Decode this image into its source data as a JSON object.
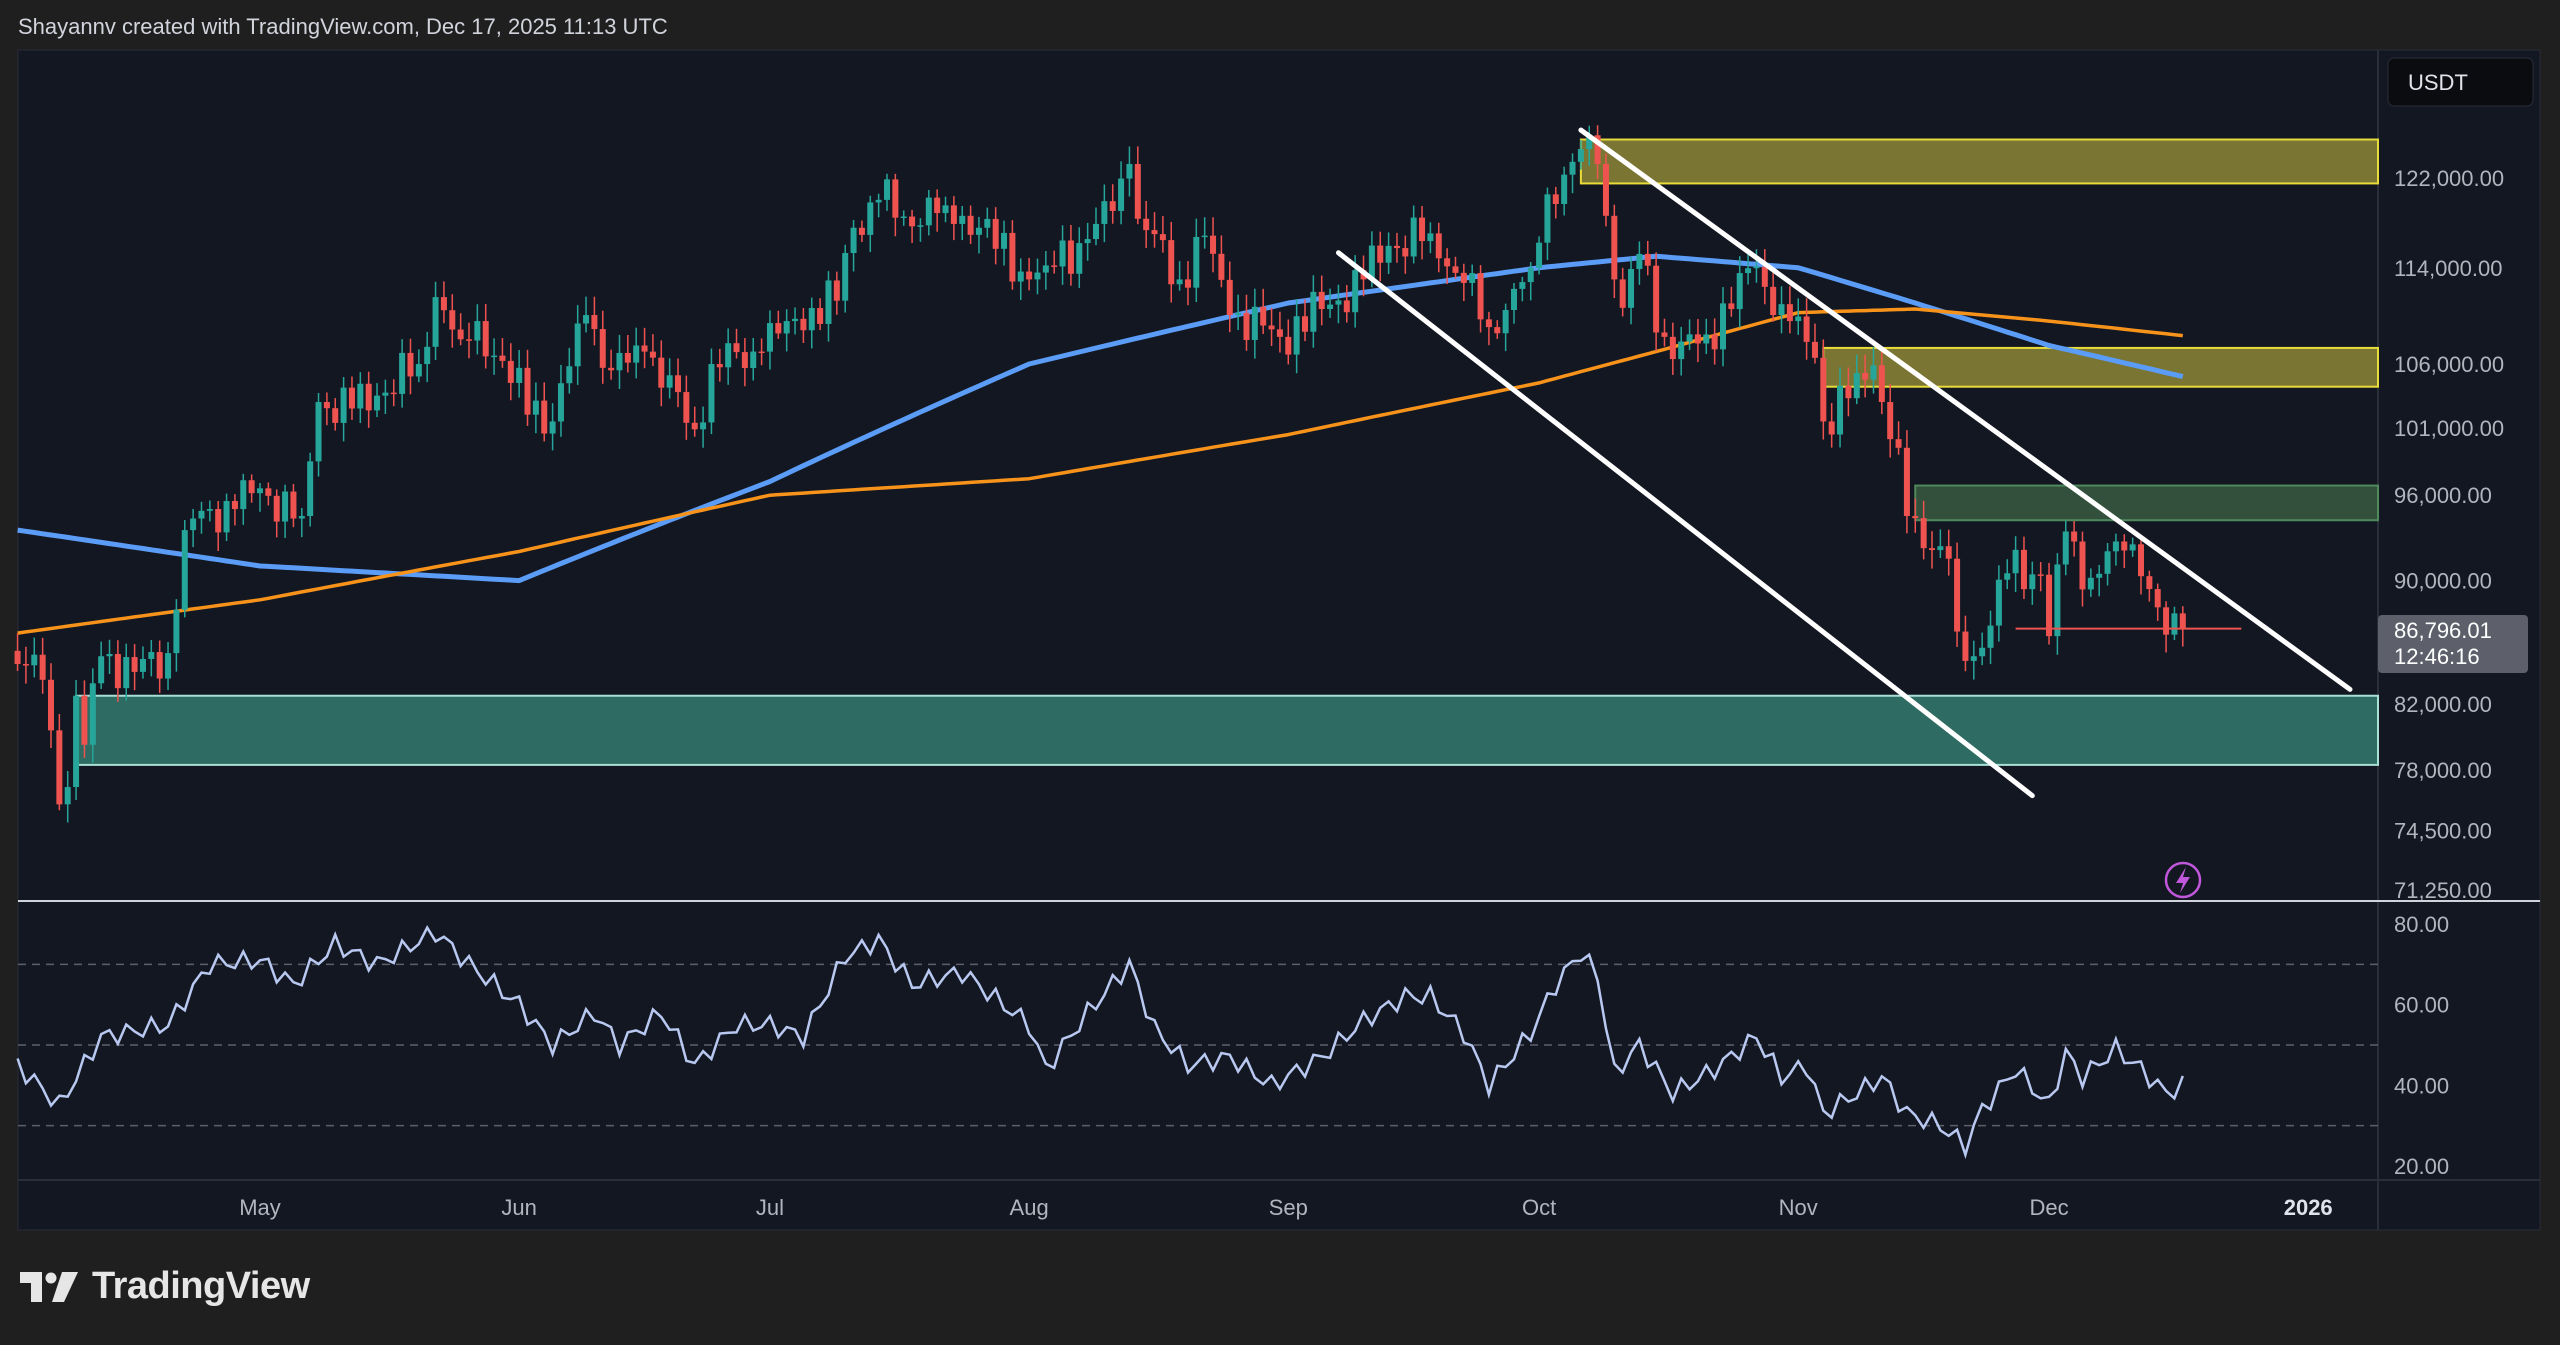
{
  "header": {
    "attribution": "Shayannv created with TradingView.com, Dec 17, 2025 11:13 UTC"
  },
  "logo": {
    "text": "TradingView"
  },
  "colors": {
    "background": "#131722",
    "up": "#26a69a",
    "down": "#ef5350",
    "ma_fast": "#5b9cf6",
    "ma_slow": "#f7931a",
    "rsi": "#b8c8f0",
    "supply_zone": "#7a7533",
    "demand_zone": "#2e6b62",
    "green_zone": "#33503c",
    "price_label": "#5d606b",
    "icon_accent": "#c158dc"
  },
  "chart_data": {
    "type": "candlestick",
    "symbol_currency": "USDT",
    "y_scale": "log",
    "ylim": [
      71250,
      128000
    ],
    "price_ticks": [
      "122,000.00",
      "114,000.00",
      "106,000.00",
      "101,000.00",
      "96,000.00",
      "90,000.00",
      "82,000.00",
      "78,000.00",
      "74,500.00",
      "71,250.00"
    ],
    "price_tick_values": [
      122000,
      114000,
      106000,
      101000,
      96000,
      90000,
      82000,
      78000,
      74500,
      71250
    ],
    "last_price": {
      "value": "86,796.01",
      "countdown": "12:46:16"
    },
    "time_ticks": [
      {
        "label": "May",
        "date": "2025-05-01"
      },
      {
        "label": "Jun",
        "date": "2025-06-01"
      },
      {
        "label": "Jul",
        "date": "2025-07-01"
      },
      {
        "label": "Aug",
        "date": "2025-08-01"
      },
      {
        "label": "Sep",
        "date": "2025-09-01"
      },
      {
        "label": "Oct",
        "date": "2025-10-01"
      },
      {
        "label": "Nov",
        "date": "2025-11-01"
      },
      {
        "label": "Dec",
        "date": "2025-12-01"
      },
      {
        "label": "2026",
        "date": "2026-01-01"
      }
    ],
    "range": {
      "start": "2025-04-02",
      "end": "2025-12-17"
    },
    "close_anchors": [
      [
        "2025-04-02",
        84500
      ],
      [
        "2025-04-05",
        83500
      ],
      [
        "2025-04-07",
        76000
      ],
      [
        "2025-04-08",
        77000
      ],
      [
        "2025-04-09",
        82500
      ],
      [
        "2025-04-10",
        79500
      ],
      [
        "2025-04-12",
        85000
      ],
      [
        "2025-04-16",
        84000
      ],
      [
        "2025-04-20",
        85200
      ],
      [
        "2025-04-22",
        93500
      ],
      [
        "2025-04-25",
        95000
      ],
      [
        "2025-04-28",
        95000
      ],
      [
        "2025-05-01",
        96500
      ],
      [
        "2025-05-06",
        94500
      ],
      [
        "2025-05-08",
        103000
      ],
      [
        "2025-05-12",
        102500
      ],
      [
        "2025-05-15",
        103500
      ],
      [
        "2025-05-20",
        106000
      ],
      [
        "2025-05-22",
        111500
      ],
      [
        "2025-05-25",
        108000
      ],
      [
        "2025-05-27",
        109500
      ],
      [
        "2025-05-31",
        104500
      ],
      [
        "2025-06-05",
        101500
      ],
      [
        "2025-06-09",
        110000
      ],
      [
        "2025-06-12",
        105500
      ],
      [
        "2025-06-16",
        107000
      ],
      [
        "2025-06-22",
        100900
      ],
      [
        "2025-06-24",
        106000
      ],
      [
        "2025-06-30",
        107000
      ],
      [
        "2025-07-03",
        109500
      ],
      [
        "2025-07-09",
        111200
      ],
      [
        "2025-07-11",
        117500
      ],
      [
        "2025-07-14",
        120000
      ],
      [
        "2025-07-17",
        118500
      ],
      [
        "2025-07-22",
        119500
      ],
      [
        "2025-07-26",
        117500
      ],
      [
        "2025-08-01",
        113000
      ],
      [
        "2025-08-03",
        114200
      ],
      [
        "2025-08-08",
        116500
      ],
      [
        "2025-08-11",
        119000
      ],
      [
        "2025-08-13",
        123300
      ],
      [
        "2025-08-14",
        118300
      ],
      [
        "2025-08-19",
        113000
      ],
      [
        "2025-08-22",
        116800
      ],
      [
        "2025-08-25",
        110000
      ],
      [
        "2025-08-31",
        108200
      ],
      [
        "2025-09-05",
        110500
      ],
      [
        "2025-09-10",
        113000
      ],
      [
        "2025-09-13",
        115900
      ],
      [
        "2025-09-18",
        117000
      ],
      [
        "2025-09-22",
        112700
      ],
      [
        "2025-09-25",
        109000
      ],
      [
        "2025-09-30",
        114000
      ],
      [
        "2025-10-02",
        120500
      ],
      [
        "2025-10-05",
        123500
      ],
      [
        "2025-10-06",
        124700
      ],
      [
        "2025-10-08",
        123300
      ],
      [
        "2025-10-10",
        113000
      ],
      [
        "2025-10-11",
        110600
      ],
      [
        "2025-10-13",
        115200
      ],
      [
        "2025-10-16",
        108200
      ],
      [
        "2025-10-17",
        106400
      ],
      [
        "2025-10-21",
        108400
      ],
      [
        "2025-10-27",
        114100
      ],
      [
        "2025-10-29",
        110000
      ],
      [
        "2025-10-31",
        109500
      ],
      [
        "2025-11-03",
        106500
      ],
      [
        "2025-11-04",
        101500
      ],
      [
        "2025-11-07",
        103300
      ],
      [
        "2025-11-10",
        105900
      ],
      [
        "2025-11-11",
        103000
      ],
      [
        "2025-11-13",
        99500
      ],
      [
        "2025-11-14",
        94500
      ],
      [
        "2025-11-17",
        92100
      ],
      [
        "2025-11-19",
        91500
      ],
      [
        "2025-11-20",
        86600
      ],
      [
        "2025-11-21",
        84700
      ],
      [
        "2025-11-22",
        85000
      ],
      [
        "2025-11-26",
        90500
      ],
      [
        "2025-11-30",
        90400
      ],
      [
        "2025-12-01",
        86300
      ],
      [
        "2025-12-03",
        93400
      ],
      [
        "2025-12-05",
        89400
      ],
      [
        "2025-12-09",
        92700
      ],
      [
        "2025-12-11",
        92500
      ],
      [
        "2025-12-12",
        90300
      ],
      [
        "2025-12-14",
        88200
      ],
      [
        "2025-12-15",
        86400
      ],
      [
        "2025-12-16",
        87800
      ],
      [
        "2025-12-17",
        86796
      ]
    ],
    "moving_averages": [
      {
        "color_key": "ma_fast",
        "points": [
          [
            "2025-04-02",
            93500
          ],
          [
            "2025-05-01",
            91000
          ],
          [
            "2025-06-01",
            90000
          ],
          [
            "2025-07-01",
            97000
          ],
          [
            "2025-08-01",
            106000
          ],
          [
            "2025-09-01",
            111000
          ],
          [
            "2025-10-01",
            114000
          ],
          [
            "2025-10-15",
            115000
          ],
          [
            "2025-11-01",
            114000
          ],
          [
            "2025-11-15",
            111000
          ],
          [
            "2025-12-01",
            107500
          ],
          [
            "2025-12-17",
            105000
          ]
        ]
      },
      {
        "color_key": "ma_slow",
        "points": [
          [
            "2025-04-02",
            86500
          ],
          [
            "2025-05-01",
            88700
          ],
          [
            "2025-06-01",
            92000
          ],
          [
            "2025-07-01",
            96000
          ],
          [
            "2025-08-01",
            97200
          ],
          [
            "2025-09-01",
            100500
          ],
          [
            "2025-10-01",
            104500
          ],
          [
            "2025-10-15",
            107000
          ],
          [
            "2025-11-01",
            110200
          ],
          [
            "2025-11-15",
            110500
          ],
          [
            "2025-12-01",
            109500
          ],
          [
            "2025-12-17",
            108300
          ]
        ]
      }
    ],
    "zones": [
      {
        "kind": "supply_zone",
        "from": "2025-10-06",
        "top": 125600,
        "bottom": 121500
      },
      {
        "kind": "supply_zone",
        "from": "2025-11-04",
        "top": 107300,
        "bottom": 104200
      },
      {
        "kind": "green_zone",
        "from": "2025-11-15",
        "top": 96700,
        "bottom": 94200
      },
      {
        "kind": "demand_zone",
        "from": "2025-04-09",
        "top": 82500,
        "bottom": 78300
      }
    ],
    "trendlines": [
      {
        "from": [
          "2025-10-06",
          126500
        ],
        "to": [
          "2026-01-06",
          82900
        ]
      },
      {
        "from": [
          "2025-09-07",
          115300
        ],
        "to": [
          "2025-11-29",
          76500
        ]
      }
    ],
    "horizontal_ray": {
      "from": "2025-11-27",
      "to": "2025-12-24",
      "price": 86796
    },
    "rsi": {
      "ticks": [
        "80.00",
        "60.00",
        "40.00",
        "20.00"
      ],
      "tick_values": [
        80,
        60,
        40,
        20
      ],
      "levels": [
        70,
        50,
        30
      ],
      "points": [
        [
          "2025-04-02",
          45
        ],
        [
          "2025-04-07",
          35
        ],
        [
          "2025-04-12",
          52
        ],
        [
          "2025-04-20",
          55
        ],
        [
          "2025-04-25",
          70
        ],
        [
          "2025-05-01",
          71
        ],
        [
          "2025-05-05",
          65
        ],
        [
          "2025-05-10",
          75
        ],
        [
          "2025-05-15",
          70
        ],
        [
          "2025-05-22",
          78
        ],
        [
          "2025-05-26",
          70
        ],
        [
          "2025-06-01",
          60
        ],
        [
          "2025-06-05",
          50
        ],
        [
          "2025-06-10",
          58
        ],
        [
          "2025-06-13",
          50
        ],
        [
          "2025-06-18",
          58
        ],
        [
          "2025-06-22",
          45
        ],
        [
          "2025-06-27",
          55
        ],
        [
          "2025-07-01",
          55
        ],
        [
          "2025-07-05",
          52
        ],
        [
          "2025-07-10",
          72
        ],
        [
          "2025-07-14",
          76
        ],
        [
          "2025-07-18",
          65
        ],
        [
          "2025-07-24",
          68
        ],
        [
          "2025-08-01",
          55
        ],
        [
          "2025-08-03",
          44
        ],
        [
          "2025-08-08",
          58
        ],
        [
          "2025-08-13",
          70
        ],
        [
          "2025-08-16",
          54
        ],
        [
          "2025-08-20",
          45
        ],
        [
          "2025-08-25",
          47
        ],
        [
          "2025-08-30",
          40
        ],
        [
          "2025-09-05",
          47
        ],
        [
          "2025-09-10",
          56
        ],
        [
          "2025-09-15",
          62
        ],
        [
          "2025-09-18",
          62
        ],
        [
          "2025-09-22",
          53
        ],
        [
          "2025-09-25",
          40
        ],
        [
          "2025-09-30",
          53
        ],
        [
          "2025-10-03",
          65
        ],
        [
          "2025-10-06",
          73
        ],
        [
          "2025-10-08",
          67
        ],
        [
          "2025-10-10",
          43
        ],
        [
          "2025-10-13",
          50
        ],
        [
          "2025-10-17",
          38
        ],
        [
          "2025-10-22",
          44
        ],
        [
          "2025-10-27",
          52
        ],
        [
          "2025-10-30",
          42
        ],
        [
          "2025-11-02",
          45
        ],
        [
          "2025-11-04",
          33
        ],
        [
          "2025-11-08",
          38
        ],
        [
          "2025-11-11",
          42
        ],
        [
          "2025-11-14",
          33
        ],
        [
          "2025-11-18",
          30
        ],
        [
          "2025-11-21",
          25
        ],
        [
          "2025-11-23",
          34
        ],
        [
          "2025-11-27",
          44
        ],
        [
          "2025-12-01",
          35
        ],
        [
          "2025-12-03",
          48
        ],
        [
          "2025-12-05",
          42
        ],
        [
          "2025-12-09",
          49
        ],
        [
          "2025-12-12",
          44
        ],
        [
          "2025-12-15",
          38
        ],
        [
          "2025-12-17",
          40
        ]
      ]
    }
  },
  "icons": {
    "alert": "lightning-icon",
    "logo": "tradingview-logo-icon"
  }
}
